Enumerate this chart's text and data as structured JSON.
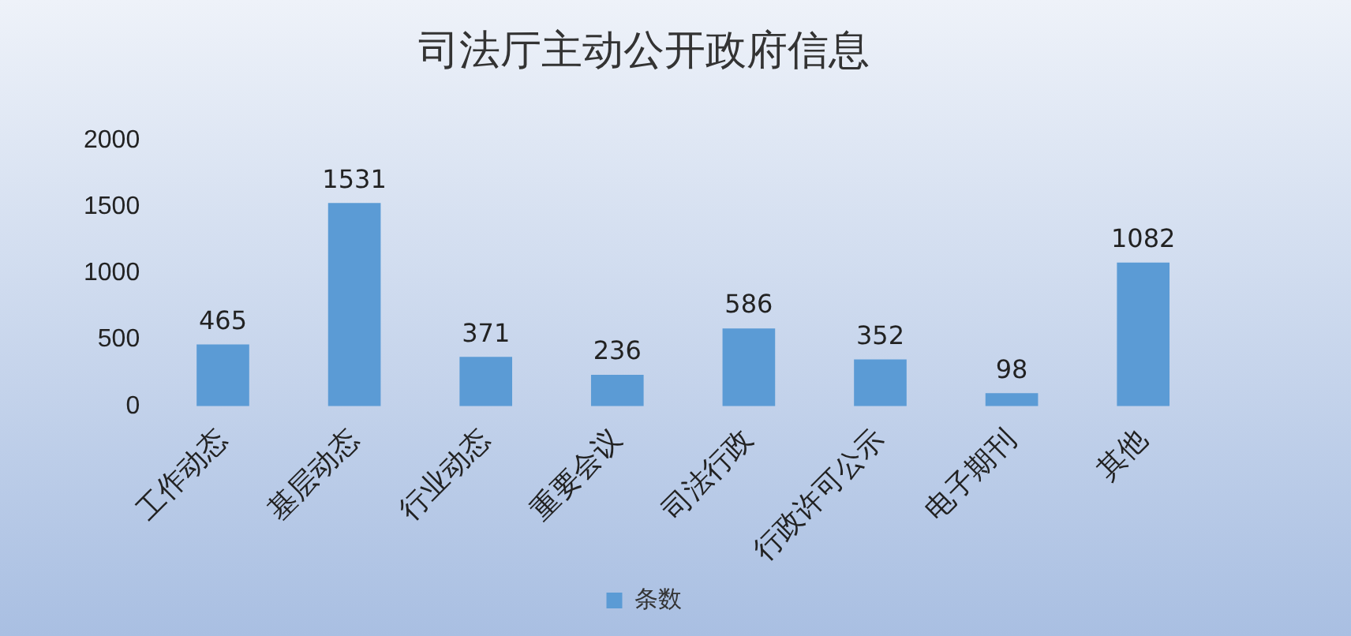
{
  "chart_data": {
    "type": "bar",
    "title": "司法厅主动公开政府信息",
    "categories": [
      "工作动态",
      "基层动态",
      "行业动态",
      "重要会议",
      "司法行政",
      "行政许可公示",
      "电子期刊",
      "其他"
    ],
    "series": [
      {
        "name": "条数",
        "color": "#5b9bd5",
        "values": [
          465,
          1531,
          371,
          236,
          586,
          352,
          98,
          1082
        ]
      }
    ],
    "ylim": [
      0,
      2000
    ],
    "yticks": [
      0,
      500,
      1000,
      1500,
      2000
    ],
    "grid": false,
    "legend": "bottom",
    "data_labels": true
  }
}
